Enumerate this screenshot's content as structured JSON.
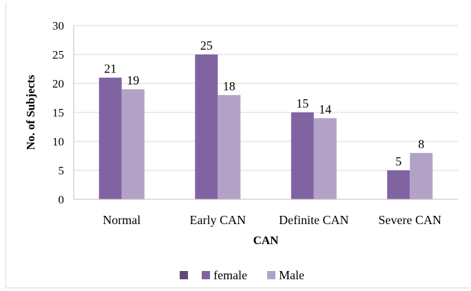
{
  "chart_data": {
    "type": "bar",
    "title": "",
    "xlabel": "CAN",
    "ylabel": "No. of Subjects",
    "categories": [
      "Normal",
      "Early CAN",
      "Definite CAN",
      "Severe CAN"
    ],
    "series": [
      {
        "name": "female",
        "values": [
          21,
          25,
          15,
          5
        ],
        "color": "#8064a2"
      },
      {
        "name": "Male",
        "values": [
          19,
          18,
          14,
          8
        ],
        "color": "#b3a2c7"
      }
    ],
    "ylim": [
      0,
      30
    ],
    "yticks": [
      "0",
      "5",
      "10",
      "15",
      "20",
      "25",
      "30"
    ],
    "grid": true,
    "legend_position": "bottom",
    "legend_marker_color": "#604a7b"
  }
}
